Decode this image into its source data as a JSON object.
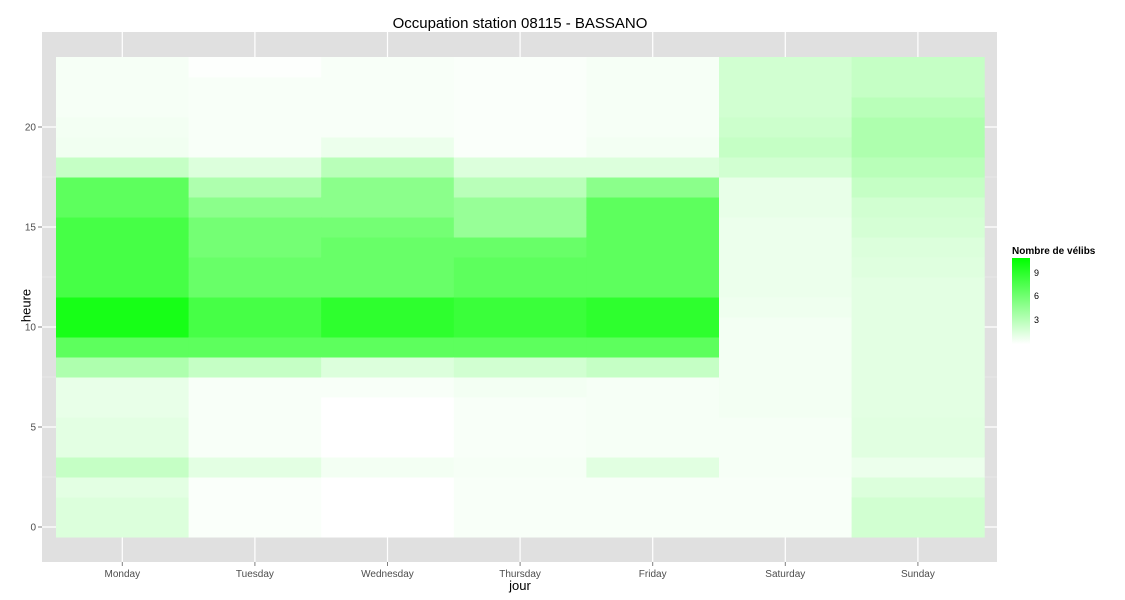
{
  "chart_data": {
    "type": "heatmap",
    "title": "Occupation station 08115 - BASSANO",
    "xlabel": "jour",
    "ylabel": "heure",
    "x_categories": [
      "Monday",
      "Tuesday",
      "Wednesday",
      "Thursday",
      "Friday",
      "Saturday",
      "Sunday"
    ],
    "y_range": [
      0,
      23
    ],
    "y_ticks": [
      0,
      5,
      10,
      15,
      20
    ],
    "legend": {
      "title": "Nombre de vélibs",
      "ticks": [
        3,
        6,
        9
      ],
      "min": 0,
      "max": 11,
      "low_color": "#ffffff",
      "high_color": "#00ff00",
      "placement": "right"
    },
    "values": {
      "Monday": [
        1.5,
        1.5,
        1.2,
        2.5,
        1.2,
        1.2,
        1.0,
        1.0,
        3.5,
        7.0,
        10.0,
        10.0,
        8.0,
        8.0,
        8.0,
        8.0,
        7.0,
        7.0,
        2.5,
        0.6,
        0.5,
        0.4,
        0.4,
        0.4
      ],
      "Tuesday": [
        0.2,
        0.2,
        0.2,
        1.2,
        0.3,
        0.3,
        0.3,
        0.3,
        2.5,
        7.0,
        8.0,
        8.0,
        6.5,
        6.5,
        6.0,
        6.0,
        5.0,
        3.5,
        1.5,
        0.3,
        0.3,
        0.3,
        0.3,
        0.1
      ],
      "Wednesday": [
        0.0,
        0.0,
        0.0,
        0.5,
        0.0,
        0.0,
        0.0,
        0.3,
        1.5,
        7.0,
        9.0,
        9.0,
        6.5,
        6.5,
        6.5,
        6.0,
        5.0,
        5.0,
        3.0,
        0.8,
        0.3,
        0.3,
        0.3,
        0.3
      ],
      "Thursday": [
        0.3,
        0.3,
        0.3,
        0.4,
        0.3,
        0.3,
        0.3,
        0.5,
        2.0,
        7.0,
        8.5,
        8.5,
        7.0,
        7.0,
        6.5,
        4.5,
        4.5,
        3.0,
        1.5,
        0.2,
        0.2,
        0.2,
        0.2,
        0.2
      ],
      "Friday": [
        0.3,
        0.3,
        0.3,
        1.3,
        0.4,
        0.4,
        0.4,
        0.4,
        2.5,
        7.0,
        9.0,
        9.0,
        7.0,
        7.0,
        7.0,
        7.0,
        7.0,
        5.0,
        1.5,
        0.5,
        0.4,
        0.4,
        0.4,
        0.4
      ],
      "Saturday": [
        0.3,
        0.3,
        0.3,
        0.4,
        0.4,
        0.4,
        0.5,
        0.5,
        0.5,
        0.5,
        0.5,
        0.7,
        0.8,
        0.8,
        0.8,
        0.8,
        1.0,
        1.0,
        2.0,
        2.5,
        2.2,
        2.0,
        2.0,
        2.0
      ],
      "Sunday": [
        2.0,
        2.0,
        1.5,
        0.8,
        1.3,
        1.3,
        1.2,
        1.2,
        1.2,
        1.2,
        1.2,
        1.2,
        1.2,
        1.4,
        1.5,
        1.8,
        2.0,
        2.5,
        3.0,
        3.5,
        3.5,
        3.0,
        2.5,
        2.5
      ]
    }
  }
}
